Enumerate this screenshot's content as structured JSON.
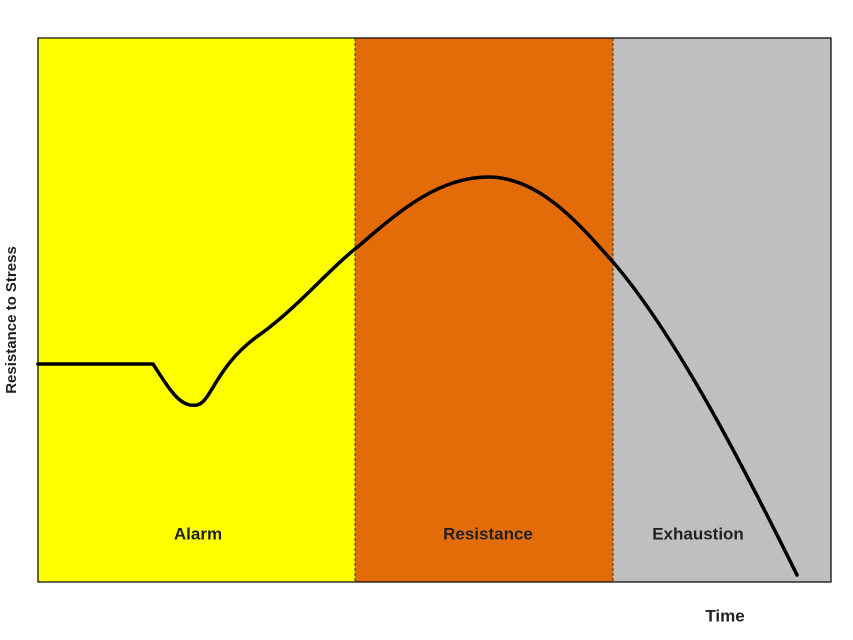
{
  "y_axis_label": "Resistance to Stress",
  "x_axis_label": "Time",
  "phases": [
    "Alarm",
    "Resistance",
    "Exhaustion"
  ]
}
